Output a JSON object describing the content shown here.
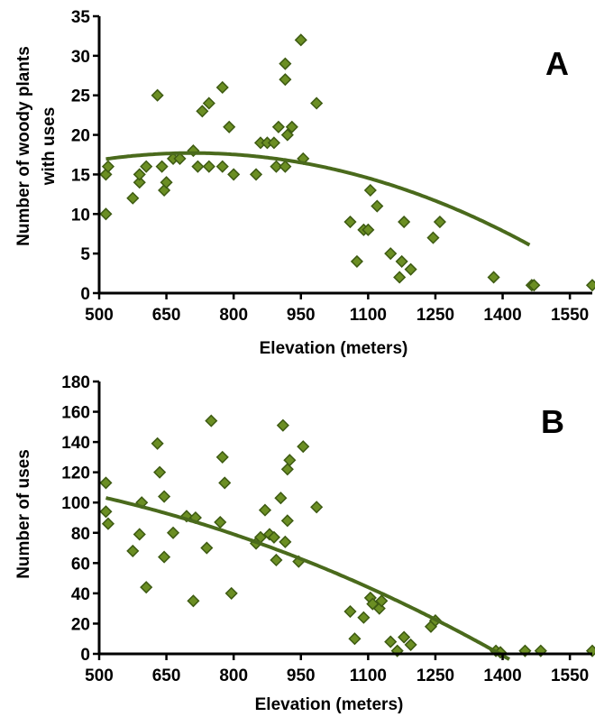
{
  "colors": {
    "marker_fill": "#6b8e23",
    "marker_stroke": "#3d5a12",
    "curve": "#4a6a1c",
    "axis": "#000000"
  },
  "chart_data": [
    {
      "type": "scatter",
      "panel": "A",
      "title": "",
      "xlabel": "Elevation (meters)",
      "ylabel": [
        "Number of woody plants",
        "with uses"
      ],
      "xlim": [
        500,
        1600
      ],
      "ylim": [
        0,
        35
      ],
      "xticks": [
        500,
        650,
        800,
        950,
        1100,
        1250,
        1400,
        1550
      ],
      "yticks": [
        0,
        5,
        10,
        15,
        20,
        25,
        30,
        35
      ],
      "grid": false,
      "points": [
        [
          515,
          10
        ],
        [
          515,
          15
        ],
        [
          520,
          16
        ],
        [
          575,
          12
        ],
        [
          590,
          14
        ],
        [
          590,
          15
        ],
        [
          605,
          16
        ],
        [
          630,
          25
        ],
        [
          640,
          16
        ],
        [
          645,
          13
        ],
        [
          650,
          14
        ],
        [
          665,
          17
        ],
        [
          680,
          17
        ],
        [
          710,
          18
        ],
        [
          720,
          16
        ],
        [
          730,
          23
        ],
        [
          745,
          24
        ],
        [
          745,
          16
        ],
        [
          775,
          26
        ],
        [
          775,
          16
        ],
        [
          790,
          21
        ],
        [
          800,
          15
        ],
        [
          850,
          15
        ],
        [
          860,
          19
        ],
        [
          875,
          19
        ],
        [
          890,
          19
        ],
        [
          895,
          16
        ],
        [
          900,
          21
        ],
        [
          915,
          16
        ],
        [
          915,
          27
        ],
        [
          915,
          29
        ],
        [
          920,
          20
        ],
        [
          930,
          21
        ],
        [
          950,
          32
        ],
        [
          955,
          17
        ],
        [
          985,
          24
        ],
        [
          1060,
          9
        ],
        [
          1075,
          4
        ],
        [
          1090,
          8
        ],
        [
          1100,
          8
        ],
        [
          1105,
          13
        ],
        [
          1120,
          11
        ],
        [
          1150,
          5
        ],
        [
          1170,
          2
        ],
        [
          1175,
          4
        ],
        [
          1180,
          9
        ],
        [
          1195,
          3
        ],
        [
          1245,
          7
        ],
        [
          1260,
          9
        ],
        [
          1380,
          2
        ],
        [
          1465,
          1
        ],
        [
          1470,
          1
        ],
        [
          1600,
          1
        ]
      ],
      "fit": {
        "a": -2.05e-05,
        "b": 0.029,
        "c": 7.45,
        "x_end": 1462
      }
    },
    {
      "type": "scatter",
      "panel": "B",
      "title": "",
      "xlabel": "Elevation (meters)",
      "ylabel": [
        "Number of uses"
      ],
      "xlim": [
        500,
        1600
      ],
      "ylim": [
        0,
        180
      ],
      "xticks": [
        500,
        650,
        800,
        950,
        1100,
        1250,
        1400,
        1550
      ],
      "yticks": [
        0,
        20,
        40,
        60,
        80,
        100,
        120,
        140,
        160,
        180
      ],
      "grid": false,
      "points": [
        [
          515,
          113
        ],
        [
          515,
          94
        ],
        [
          520,
          86
        ],
        [
          575,
          68
        ],
        [
          590,
          79
        ],
        [
          595,
          100
        ],
        [
          605,
          44
        ],
        [
          630,
          139
        ],
        [
          635,
          120
        ],
        [
          645,
          64
        ],
        [
          645,
          104
        ],
        [
          665,
          80
        ],
        [
          695,
          91
        ],
        [
          710,
          35
        ],
        [
          715,
          90
        ],
        [
          740,
          70
        ],
        [
          750,
          154
        ],
        [
          770,
          87
        ],
        [
          775,
          130
        ],
        [
          780,
          113
        ],
        [
          795,
          40
        ],
        [
          850,
          73
        ],
        [
          860,
          77
        ],
        [
          870,
          95
        ],
        [
          880,
          79
        ],
        [
          890,
          77
        ],
        [
          895,
          62
        ],
        [
          905,
          103
        ],
        [
          910,
          151
        ],
        [
          915,
          74
        ],
        [
          920,
          88
        ],
        [
          920,
          122
        ],
        [
          925,
          128
        ],
        [
          945,
          61
        ],
        [
          955,
          137
        ],
        [
          985,
          97
        ],
        [
          1060,
          28
        ],
        [
          1070,
          10
        ],
        [
          1090,
          24
        ],
        [
          1105,
          37
        ],
        [
          1110,
          33
        ],
        [
          1125,
          30
        ],
        [
          1130,
          35
        ],
        [
          1150,
          8
        ],
        [
          1165,
          2
        ],
        [
          1180,
          11
        ],
        [
          1195,
          6
        ],
        [
          1240,
          18
        ],
        [
          1250,
          22
        ],
        [
          1385,
          2
        ],
        [
          1395,
          1
        ],
        [
          1450,
          2
        ],
        [
          1485,
          2
        ],
        [
          1600,
          2
        ]
      ],
      "fit": {
        "a": -5.57e-05,
        "b": -0.011,
        "c": 123.5,
        "x_end": 1415
      }
    }
  ],
  "panels": {
    "a_letter": "A",
    "b_letter": "B"
  }
}
